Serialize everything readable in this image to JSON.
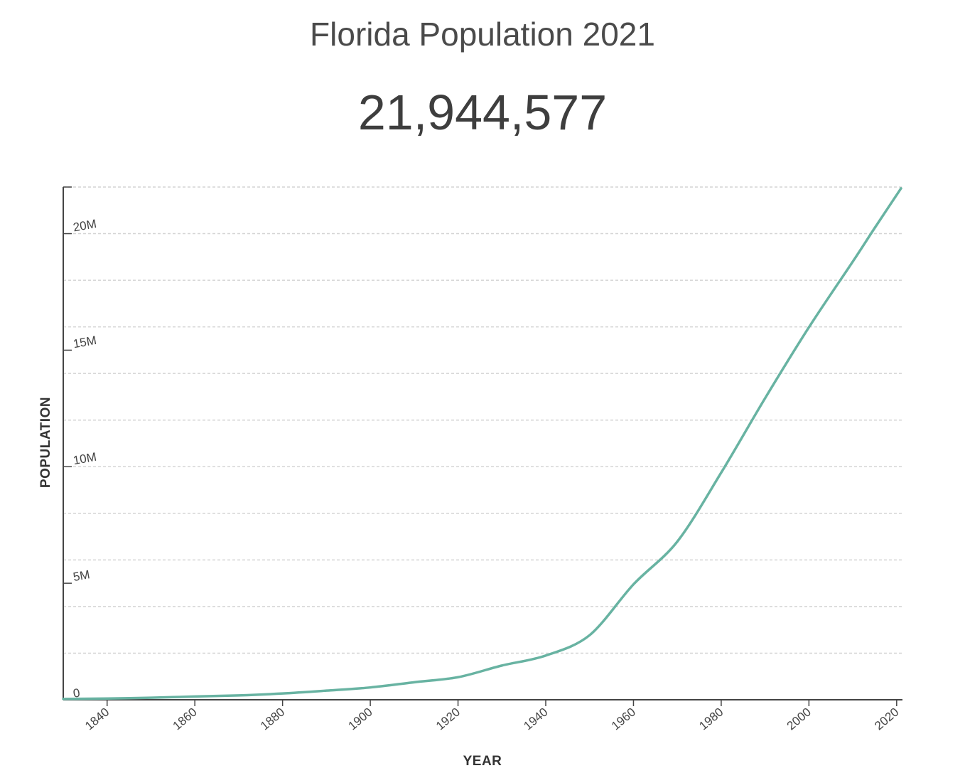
{
  "header": {
    "title": "Florida Population 2021",
    "population_display": "21,944,577"
  },
  "colors": {
    "line": "#68b3a2",
    "grid": "#d4d4d4",
    "axis": "#444444"
  },
  "chart_data": {
    "type": "line",
    "xlabel": "YEAR",
    "ylabel": "POPULATION",
    "xlim": [
      1830,
      2021
    ],
    "ylim": [
      0,
      22000000
    ],
    "x_ticks": [
      1840,
      1860,
      1880,
      1900,
      1920,
      1940,
      1960,
      1980,
      2000,
      2020
    ],
    "y_ticks": [
      {
        "value": 0,
        "label": "0"
      },
      {
        "value": 5000000,
        "label": "5M"
      },
      {
        "value": 10000000,
        "label": "10M"
      },
      {
        "value": 15000000,
        "label": "15M"
      },
      {
        "value": 20000000,
        "label": "20M"
      }
    ],
    "grid_values": [
      0,
      2000000,
      4000000,
      6000000,
      8000000,
      10000000,
      12000000,
      14000000,
      16000000,
      18000000,
      20000000,
      22000000
    ],
    "grid": true,
    "series": [
      {
        "x": [
          1830,
          1840,
          1850,
          1860,
          1870,
          1880,
          1890,
          1900,
          1910,
          1920,
          1930,
          1940,
          1950,
          1960,
          1970,
          1980,
          1990,
          2000,
          2010,
          2015,
          2021
        ],
        "values": [
          34730,
          54477,
          87445,
          140424,
          187748,
          269493,
          391422,
          528542,
          752619,
          968470,
          1468211,
          1897414,
          2771305,
          4951560,
          6789443,
          9746324,
          12937926,
          15982378,
          18801310,
          20244914,
          21944577
        ]
      }
    ]
  }
}
